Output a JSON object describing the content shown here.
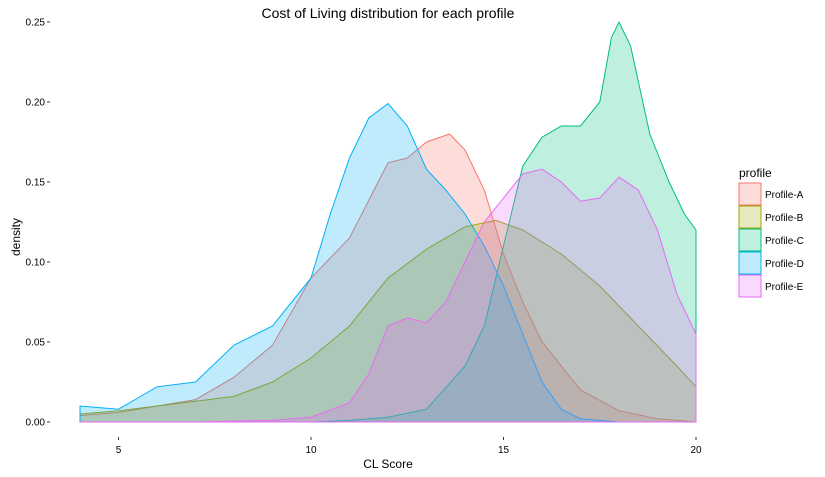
{
  "chart_data": {
    "type": "area",
    "title": "Cost of Living distribution for each profile",
    "xlabel": "CL Score",
    "ylabel": "density",
    "xlim": [
      4,
      20
    ],
    "ylim": [
      0,
      0.25
    ],
    "x_ticks": [
      "5",
      "10",
      "15",
      "20"
    ],
    "y_ticks": [
      "0.00",
      "0.05",
      "0.10",
      "0.15",
      "0.20",
      "0.25"
    ],
    "grid": false,
    "legend": {
      "title": "profile",
      "position": "right"
    },
    "series": [
      {
        "name": "Profile-A",
        "stroke": "#F8766D",
        "fill": "#F8766D",
        "points": [
          [
            4,
            0.004
          ],
          [
            5,
            0.006
          ],
          [
            6,
            0.01
          ],
          [
            7,
            0.014
          ],
          [
            8,
            0.028
          ],
          [
            9,
            0.048
          ],
          [
            10,
            0.09
          ],
          [
            11,
            0.115
          ],
          [
            12,
            0.162
          ],
          [
            12.5,
            0.165
          ],
          [
            13,
            0.175
          ],
          [
            13.6,
            0.18
          ],
          [
            14,
            0.17
          ],
          [
            14.5,
            0.145
          ],
          [
            15,
            0.105
          ],
          [
            15.5,
            0.075
          ],
          [
            16,
            0.05
          ],
          [
            17,
            0.02
          ],
          [
            18,
            0.007
          ],
          [
            19,
            0.002
          ],
          [
            20,
            0.0
          ]
        ]
      },
      {
        "name": "Profile-B",
        "stroke": "#A3A500",
        "fill": "#A3A500",
        "points": [
          [
            4,
            0.005
          ],
          [
            5,
            0.007
          ],
          [
            6,
            0.01
          ],
          [
            7,
            0.013
          ],
          [
            8,
            0.016
          ],
          [
            9,
            0.025
          ],
          [
            10,
            0.04
          ],
          [
            11,
            0.06
          ],
          [
            12,
            0.09
          ],
          [
            13,
            0.108
          ],
          [
            14,
            0.122
          ],
          [
            14.8,
            0.126
          ],
          [
            15.5,
            0.12
          ],
          [
            16.5,
            0.105
          ],
          [
            17.5,
            0.085
          ],
          [
            18.5,
            0.06
          ],
          [
            19.5,
            0.035
          ],
          [
            20,
            0.022
          ]
        ]
      },
      {
        "name": "Profile-C",
        "stroke": "#00BF7D",
        "fill": "#00BF7D",
        "points": [
          [
            10,
            0.0
          ],
          [
            11,
            0.001
          ],
          [
            12,
            0.003
          ],
          [
            13,
            0.008
          ],
          [
            14,
            0.035
          ],
          [
            14.5,
            0.06
          ],
          [
            15,
            0.11
          ],
          [
            15.5,
            0.16
          ],
          [
            16,
            0.178
          ],
          [
            16.5,
            0.185
          ],
          [
            17,
            0.185
          ],
          [
            17.5,
            0.2
          ],
          [
            17.8,
            0.24
          ],
          [
            18,
            0.25
          ],
          [
            18.3,
            0.235
          ],
          [
            18.8,
            0.18
          ],
          [
            19.3,
            0.15
          ],
          [
            19.7,
            0.13
          ],
          [
            20,
            0.12
          ]
        ]
      },
      {
        "name": "Profile-D",
        "stroke": "#00B0F6",
        "fill": "#00B0F6",
        "points": [
          [
            4,
            0.01
          ],
          [
            5,
            0.008
          ],
          [
            5.5,
            0.015
          ],
          [
            6,
            0.022
          ],
          [
            7,
            0.025
          ],
          [
            8,
            0.048
          ],
          [
            9,
            0.06
          ],
          [
            10,
            0.09
          ],
          [
            10.5,
            0.13
          ],
          [
            11,
            0.165
          ],
          [
            11.5,
            0.19
          ],
          [
            12,
            0.199
          ],
          [
            12.5,
            0.185
          ],
          [
            13,
            0.158
          ],
          [
            13.5,
            0.145
          ],
          [
            14,
            0.13
          ],
          [
            14.5,
            0.11
          ],
          [
            15,
            0.085
          ],
          [
            15.5,
            0.055
          ],
          [
            16,
            0.025
          ],
          [
            16.5,
            0.008
          ],
          [
            17,
            0.002
          ],
          [
            18,
            0.0
          ],
          [
            20,
            0.0
          ]
        ]
      },
      {
        "name": "Profile-E",
        "stroke": "#E76BF3",
        "fill": "#E76BF3",
        "points": [
          [
            4,
            0.0
          ],
          [
            7,
            0.0
          ],
          [
            9,
            0.001
          ],
          [
            10,
            0.003
          ],
          [
            11,
            0.012
          ],
          [
            11.5,
            0.03
          ],
          [
            12,
            0.06
          ],
          [
            12.5,
            0.065
          ],
          [
            13,
            0.062
          ],
          [
            13.5,
            0.075
          ],
          [
            14,
            0.1
          ],
          [
            14.5,
            0.125
          ],
          [
            15,
            0.14
          ],
          [
            15.5,
            0.155
          ],
          [
            16,
            0.158
          ],
          [
            16.5,
            0.15
          ],
          [
            17,
            0.138
          ],
          [
            17.5,
            0.14
          ],
          [
            18,
            0.153
          ],
          [
            18.5,
            0.145
          ],
          [
            19,
            0.12
          ],
          [
            19.5,
            0.08
          ],
          [
            20,
            0.055
          ]
        ]
      }
    ]
  }
}
